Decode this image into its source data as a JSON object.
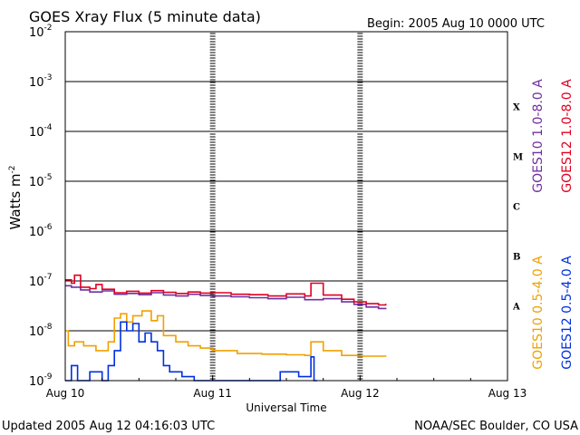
{
  "title": "GOES Xray Flux (5 minute data)",
  "begin_text": "Begin:  2005 Aug 10 0000 UTC",
  "footer": {
    "updated": "Updated 2005 Aug 12 04:16:03 UTC",
    "credit": "NOAA/SEC Boulder, CO USA"
  },
  "colors": {
    "goes10_long": "#7030a0",
    "goes12_long": "#e00020",
    "goes10_short": "#f0a000",
    "goes12_short": "#0030e0",
    "grid": "#000000"
  },
  "chart_data": {
    "type": "line",
    "title": "GOES Xray Flux (5 minute data)",
    "xlabel": "Universal Time",
    "ylabel": "Watts m",
    "ylabel_superscript": "-2",
    "y_scale": "log",
    "ylim": [
      1e-09,
      0.01
    ],
    "xlim": [
      "2005-08-10T00:00",
      "2005-08-13T00:00"
    ],
    "x_tick_labels": [
      "Aug 10",
      "Aug 11",
      "Aug 12",
      "Aug 13"
    ],
    "y_tick_labels": [
      {
        "base": "10",
        "exp": "-9"
      },
      {
        "base": "10",
        "exp": "-8"
      },
      {
        "base": "10",
        "exp": "-7"
      },
      {
        "base": "10",
        "exp": "-6"
      },
      {
        "base": "10",
        "exp": "-5"
      },
      {
        "base": "10",
        "exp": "-4"
      },
      {
        "base": "10",
        "exp": "-3"
      },
      {
        "base": "10",
        "exp": "-2"
      }
    ],
    "flare_classes": [
      "A",
      "B",
      "C",
      "M",
      "X"
    ],
    "grid": true,
    "legend_placement": "right, vertical",
    "legend": [
      {
        "label": "GOES10 1.0-8.0 A",
        "color": "#7030a0"
      },
      {
        "label": "GOES12 1.0-8.0 A",
        "color": "#e00020"
      },
      {
        "label": "GOES10 0.5-4.0 A",
        "color": "#f0a000"
      },
      {
        "label": "GOES12 0.5-4.0 A",
        "color": "#0030e0"
      }
    ],
    "series": [
      {
        "name": "GOES10 1.0-8.0 A",
        "color": "#7030a0",
        "x": [
          "2005-08-10T00:00",
          "2005-08-10T01:00",
          "2005-08-10T02:30",
          "2005-08-10T04:00",
          "2005-08-10T06:00",
          "2005-08-10T08:00",
          "2005-08-10T10:00",
          "2005-08-10T12:00",
          "2005-08-10T14:00",
          "2005-08-10T16:00",
          "2005-08-10T18:00",
          "2005-08-10T20:00",
          "2005-08-10T22:00",
          "2005-08-11T00:00",
          "2005-08-11T03:00",
          "2005-08-11T06:00",
          "2005-08-11T09:00",
          "2005-08-11T12:00",
          "2005-08-11T15:00",
          "2005-08-11T18:00",
          "2005-08-11T21:00",
          "2005-08-11T23:00",
          "2005-08-12T01:00",
          "2005-08-12T03:00",
          "2005-08-12T04:10"
        ],
        "values": [
          8e-08,
          7.5e-08,
          6.6e-08,
          6e-08,
          6.3e-08,
          5.4e-08,
          5.6e-08,
          5.3e-08,
          5.8e-08,
          5.2e-08,
          5e-08,
          5.4e-08,
          5.1e-08,
          5e-08,
          4.8e-08,
          4.6e-08,
          4.4e-08,
          4.7e-08,
          4.2e-08,
          4.4e-08,
          3.8e-08,
          3.4e-08,
          3e-08,
          2.8e-08,
          2.9e-08
        ]
      },
      {
        "name": "GOES12 1.0-8.0 A",
        "color": "#e00020",
        "x": [
          "2005-08-10T00:00",
          "2005-08-10T01:00",
          "2005-08-10T01:30",
          "2005-08-10T02:30",
          "2005-08-10T04:00",
          "2005-08-10T05:00",
          "2005-08-10T06:00",
          "2005-08-10T08:00",
          "2005-08-10T10:00",
          "2005-08-10T12:00",
          "2005-08-10T14:00",
          "2005-08-10T16:00",
          "2005-08-10T18:00",
          "2005-08-10T20:00",
          "2005-08-10T22:00",
          "2005-08-11T00:00",
          "2005-08-11T03:00",
          "2005-08-11T06:00",
          "2005-08-11T09:00",
          "2005-08-11T12:00",
          "2005-08-11T15:00",
          "2005-08-11T16:00",
          "2005-08-11T18:00",
          "2005-08-11T21:00",
          "2005-08-11T23:00",
          "2005-08-12T01:00",
          "2005-08-12T03:00",
          "2005-08-12T04:10"
        ],
        "values": [
          1.05e-07,
          9e-08,
          1.3e-07,
          7.5e-08,
          7e-08,
          8.5e-08,
          6.8e-08,
          5.8e-08,
          6.2e-08,
          5.7e-08,
          6.4e-08,
          5.9e-08,
          5.6e-08,
          6e-08,
          5.7e-08,
          5.8e-08,
          5.4e-08,
          5.3e-08,
          5e-08,
          5.5e-08,
          5e-08,
          9e-08,
          5.2e-08,
          4.3e-08,
          3.8e-08,
          3.5e-08,
          3.3e-08,
          3.5e-08
        ]
      },
      {
        "name": "GOES10 0.5-4.0 A",
        "color": "#f0a000",
        "x": [
          "2005-08-10T00:00",
          "2005-08-10T00:30",
          "2005-08-10T01:30",
          "2005-08-10T03:00",
          "2005-08-10T05:00",
          "2005-08-10T07:00",
          "2005-08-10T08:00",
          "2005-08-10T09:00",
          "2005-08-10T10:00",
          "2005-08-10T11:00",
          "2005-08-10T12:30",
          "2005-08-10T14:00",
          "2005-08-10T15:00",
          "2005-08-10T16:00",
          "2005-08-10T18:00",
          "2005-08-10T20:00",
          "2005-08-10T22:00",
          "2005-08-11T00:00",
          "2005-08-11T04:00",
          "2005-08-11T08:00",
          "2005-08-11T12:00",
          "2005-08-11T15:00",
          "2005-08-11T16:00",
          "2005-08-11T18:00",
          "2005-08-11T21:00",
          "2005-08-12T00:00",
          "2005-08-12T04:10"
        ],
        "values": [
          1e-08,
          5e-09,
          6e-09,
          5e-09,
          4e-09,
          6e-09,
          1.8e-08,
          2.2e-08,
          1.5e-08,
          2e-08,
          2.5e-08,
          1.6e-08,
          2e-08,
          8e-09,
          6e-09,
          5e-09,
          4.5e-09,
          4e-09,
          3.5e-09,
          3.4e-09,
          3.3e-09,
          3.2e-09,
          6e-09,
          4e-09,
          3.2e-09,
          3.1e-09,
          3e-09
        ]
      },
      {
        "name": "GOES12 0.5-4.0 A",
        "color": "#0030e0",
        "x": [
          "2005-08-10T00:00",
          "2005-08-10T01:00",
          "2005-08-10T02:00",
          "2005-08-10T04:00",
          "2005-08-10T06:00",
          "2005-08-10T07:00",
          "2005-08-10T08:00",
          "2005-08-10T09:00",
          "2005-08-10T10:00",
          "2005-08-10T11:00",
          "2005-08-10T12:00",
          "2005-08-10T13:00",
          "2005-08-10T14:00",
          "2005-08-10T15:00",
          "2005-08-10T16:00",
          "2005-08-10T17:00",
          "2005-08-10T19:00",
          "2005-08-10T21:00",
          "2005-08-10T23:00",
          "2005-08-11T04:00",
          "2005-08-11T08:00",
          "2005-08-11T11:00",
          "2005-08-11T14:00",
          "2005-08-11T16:00",
          "2005-08-11T16:30",
          "2005-08-11T17:00"
        ],
        "values": [
          1e-09,
          2e-09,
          1e-09,
          1.5e-09,
          1e-09,
          2e-09,
          4e-09,
          1.5e-08,
          1e-08,
          1.4e-08,
          6e-09,
          9e-09,
          6e-09,
          4e-09,
          2e-09,
          1.5e-09,
          1.2e-09,
          1e-09,
          1e-09,
          1e-09,
          1e-09,
          1.5e-09,
          1.2e-09,
          3e-09,
          1e-09,
          1e-09
        ]
      }
    ]
  }
}
